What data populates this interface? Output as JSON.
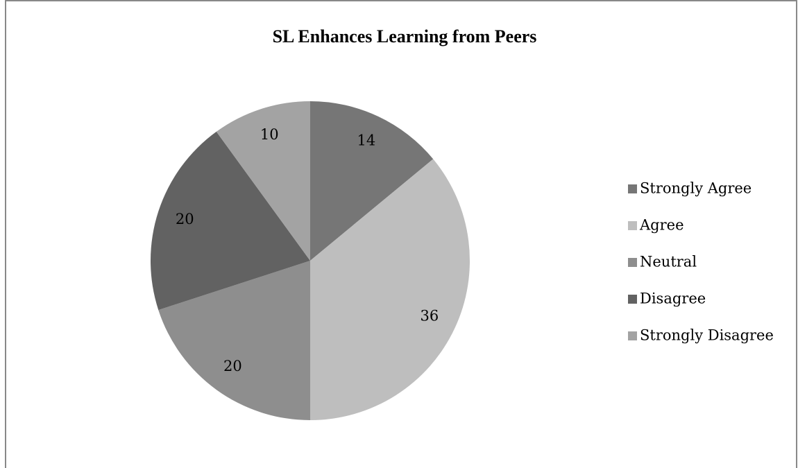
{
  "chart_data": {
    "type": "pie",
    "title": "SL Enhances Learning from Peers",
    "categories": [
      "Strongly Agree",
      "Agree",
      "Neutral",
      "Disagree",
      "Strongly Disagree"
    ],
    "values": [
      14,
      36,
      20,
      20,
      10
    ],
    "colors": [
      "#767676",
      "#bebebe",
      "#8e8e8e",
      "#626262",
      "#a3a3a3"
    ],
    "legend": "right"
  }
}
